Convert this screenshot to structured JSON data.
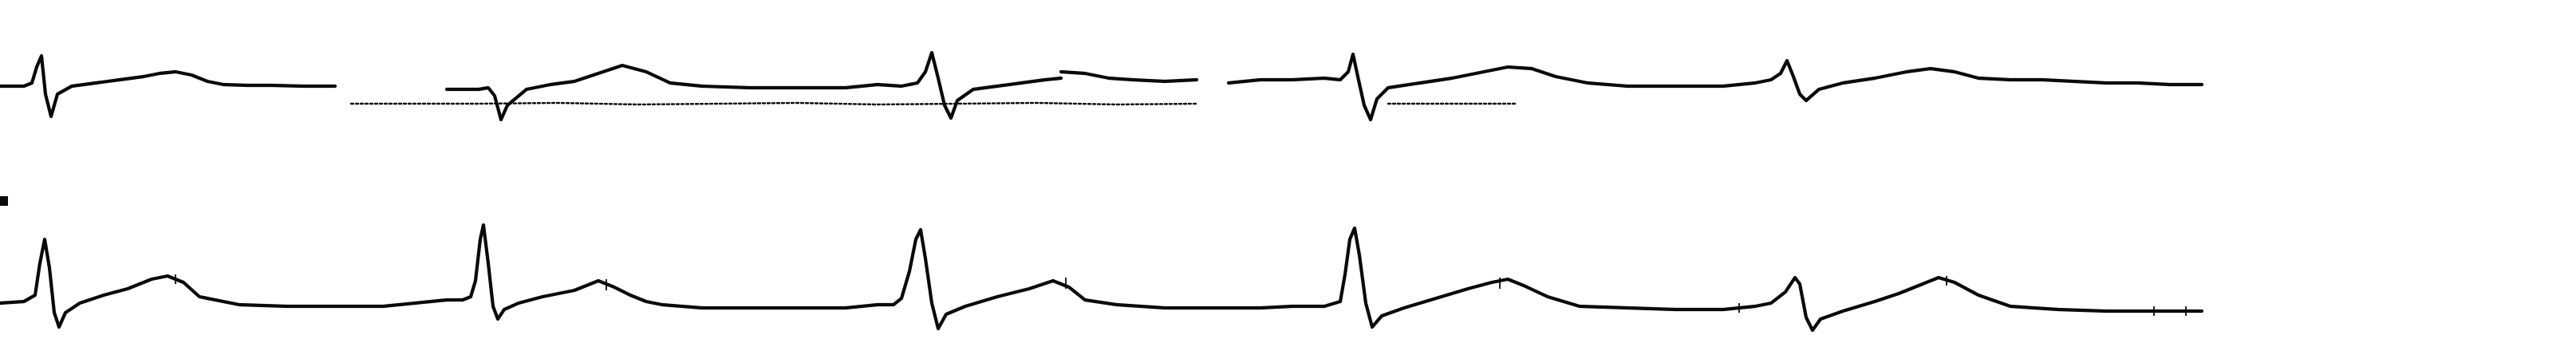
{
  "strip": {
    "trace_color": "#0a0a0a",
    "background_color": "#ffffff",
    "leads": [
      {
        "id": "upper",
        "beats": 5,
        "artifact": "dashed-baseline-overlay"
      },
      {
        "id": "lower",
        "beats": 5,
        "artifact": "dense-noise-ticks"
      }
    ]
  }
}
